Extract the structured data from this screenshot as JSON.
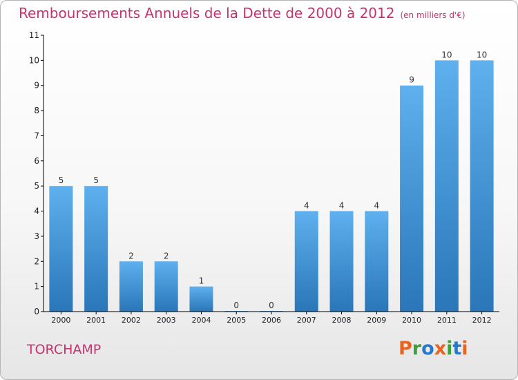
{
  "header": {
    "title": "Remboursements Annuels de la Dette de 2000 à 2012",
    "unit": "(en milliers d'€)"
  },
  "footer": {
    "commune": "TORCHAMP",
    "logo_text": "Proxiti",
    "logo_colors": [
      "#e8641e",
      "#3ca03c",
      "#2878c8",
      "#e8641e",
      "#3ca03c",
      "#2878c8",
      "#e8641e"
    ]
  },
  "colors": {
    "bar_light": "#5eb0ee",
    "bar_dark": "#2a76b8",
    "title": "#c8326e",
    "axis": "#000000"
  },
  "chart_data": {
    "type": "bar",
    "title": "Remboursements Annuels de la Dette de 2000 à 2012",
    "subtitle": "(en milliers d'€)",
    "xlabel": "",
    "ylabel": "",
    "categories": [
      "2000",
      "2001",
      "2002",
      "2003",
      "2004",
      "2005",
      "2006",
      "2007",
      "2008",
      "2009",
      "2010",
      "2011",
      "2012"
    ],
    "values": [
      5,
      5,
      2,
      2,
      1,
      0,
      0,
      4,
      4,
      4,
      9,
      10,
      10
    ],
    "ylim": [
      0,
      11
    ],
    "yticks": [
      0,
      1,
      2,
      3,
      4,
      5,
      6,
      7,
      8,
      9,
      10,
      11
    ],
    "grid": false,
    "data_labels": true
  }
}
